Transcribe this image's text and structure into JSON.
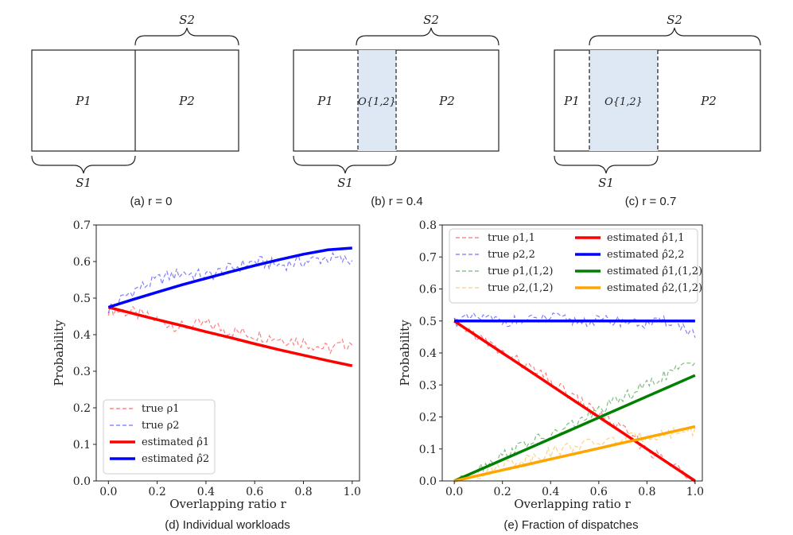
{
  "diagrams": [
    {
      "caption": "(a) r = 0",
      "p1": "P1",
      "p2": "P2",
      "s1": "S1",
      "s2": "S2",
      "overlap": null
    },
    {
      "caption": "(b) r = 0.4",
      "p1": "P1",
      "p2": "P2",
      "s1": "S1",
      "s2": "S2",
      "overlap": "O{1,2}"
    },
    {
      "caption": "(c) r = 0.7",
      "p1": "P1",
      "p2": "P2",
      "s1": "S1",
      "s2": "S2",
      "overlap": "O{1,2}"
    }
  ],
  "colors": {
    "red": "#ff0000",
    "blue": "#0000ff",
    "green": "#008000",
    "orange": "#ffa500",
    "overlap_fill": "#dde8f4"
  },
  "chart_data": [
    {
      "type": "line",
      "caption": "(d) Individual workloads",
      "xlabel": "Overlapping ratio r",
      "ylabel": "Probability",
      "xlim": [
        -0.05,
        1.03
      ],
      "ylim": [
        0.0,
        0.7
      ],
      "xticks": [
        "0.0",
        "0.2",
        "0.4",
        "0.6",
        "0.8",
        "1.0"
      ],
      "yticks": [
        "0.0",
        "0.1",
        "0.2",
        "0.3",
        "0.4",
        "0.5",
        "0.6",
        "0.7"
      ],
      "legend_position": "lower-left",
      "x": [
        0.0,
        0.1,
        0.2,
        0.3,
        0.4,
        0.5,
        0.6,
        0.7,
        0.8,
        0.9,
        1.0
      ],
      "series": [
        {
          "name": "true ρ1",
          "style": "dashed",
          "color": "red",
          "values": [
            0.47,
            0.46,
            0.44,
            0.42,
            0.43,
            0.41,
            0.4,
            0.39,
            0.38,
            0.36,
            0.38
          ]
        },
        {
          "name": "true ρ2",
          "style": "dashed",
          "color": "blue",
          "values": [
            0.47,
            0.52,
            0.55,
            0.57,
            0.56,
            0.58,
            0.6,
            0.59,
            0.6,
            0.61,
            0.6
          ]
        },
        {
          "name": "estimated ρ̂1",
          "style": "solid",
          "color": "red",
          "values": [
            0.475,
            0.458,
            0.441,
            0.425,
            0.408,
            0.392,
            0.375,
            0.359,
            0.344,
            0.329,
            0.315
          ]
        },
        {
          "name": "estimated ρ̂2",
          "style": "solid",
          "color": "blue",
          "values": [
            0.475,
            0.496,
            0.516,
            0.536,
            0.554,
            0.572,
            0.589,
            0.605,
            0.62,
            0.632,
            0.637
          ]
        }
      ]
    },
    {
      "type": "line",
      "caption": "(e) Fraction of dispatches",
      "xlabel": "Overlapping ratio r",
      "ylabel": "Probability",
      "xlim": [
        -0.05,
        1.03
      ],
      "ylim": [
        0.0,
        0.8
      ],
      "xticks": [
        "0.0",
        "0.2",
        "0.4",
        "0.6",
        "0.8",
        "1.0"
      ],
      "yticks": [
        "0.0",
        "0.1",
        "0.2",
        "0.3",
        "0.4",
        "0.5",
        "0.6",
        "0.7",
        "0.8"
      ],
      "legend_position": "top",
      "x": [
        0.0,
        0.1,
        0.2,
        0.3,
        0.4,
        0.5,
        0.6,
        0.7,
        0.8,
        0.9,
        1.0
      ],
      "series": [
        {
          "name": "true ρ1,1",
          "style": "dashed",
          "color": "red",
          "values": [
            0.5,
            0.45,
            0.4,
            0.36,
            0.31,
            0.26,
            0.21,
            0.16,
            0.1,
            0.05,
            0.01
          ]
        },
        {
          "name": "true ρ2,2",
          "style": "dashed",
          "color": "blue",
          "values": [
            0.5,
            0.51,
            0.5,
            0.5,
            0.51,
            0.5,
            0.5,
            0.5,
            0.49,
            0.5,
            0.46
          ]
        },
        {
          "name": "true ρ1,(1,2)",
          "style": "dashed",
          "color": "green",
          "values": [
            0.0,
            0.04,
            0.08,
            0.12,
            0.14,
            0.18,
            0.22,
            0.26,
            0.3,
            0.34,
            0.37
          ]
        },
        {
          "name": "true ρ2,(1,2)",
          "style": "dashed",
          "color": "orange",
          "values": [
            0.0,
            0.02,
            0.05,
            0.07,
            0.09,
            0.11,
            0.12,
            0.13,
            0.14,
            0.15,
            0.16
          ]
        },
        {
          "name": "estimated ρ̂1,1",
          "style": "solid",
          "color": "red",
          "values": [
            0.5,
            0.45,
            0.4,
            0.35,
            0.3,
            0.25,
            0.2,
            0.15,
            0.1,
            0.05,
            0.0
          ]
        },
        {
          "name": "estimated ρ̂2,2",
          "style": "solid",
          "color": "blue",
          "values": [
            0.5,
            0.5,
            0.5,
            0.5,
            0.5,
            0.5,
            0.5,
            0.5,
            0.5,
            0.5,
            0.5
          ]
        },
        {
          "name": "estimated ρ̂1,(1,2)",
          "style": "solid",
          "color": "green",
          "values": [
            0.0,
            0.033,
            0.066,
            0.099,
            0.132,
            0.165,
            0.198,
            0.231,
            0.264,
            0.297,
            0.33
          ]
        },
        {
          "name": "estimated ρ̂2,(1,2)",
          "style": "solid",
          "color": "orange",
          "values": [
            0.0,
            0.017,
            0.034,
            0.051,
            0.068,
            0.085,
            0.102,
            0.119,
            0.136,
            0.153,
            0.17
          ]
        }
      ]
    }
  ]
}
